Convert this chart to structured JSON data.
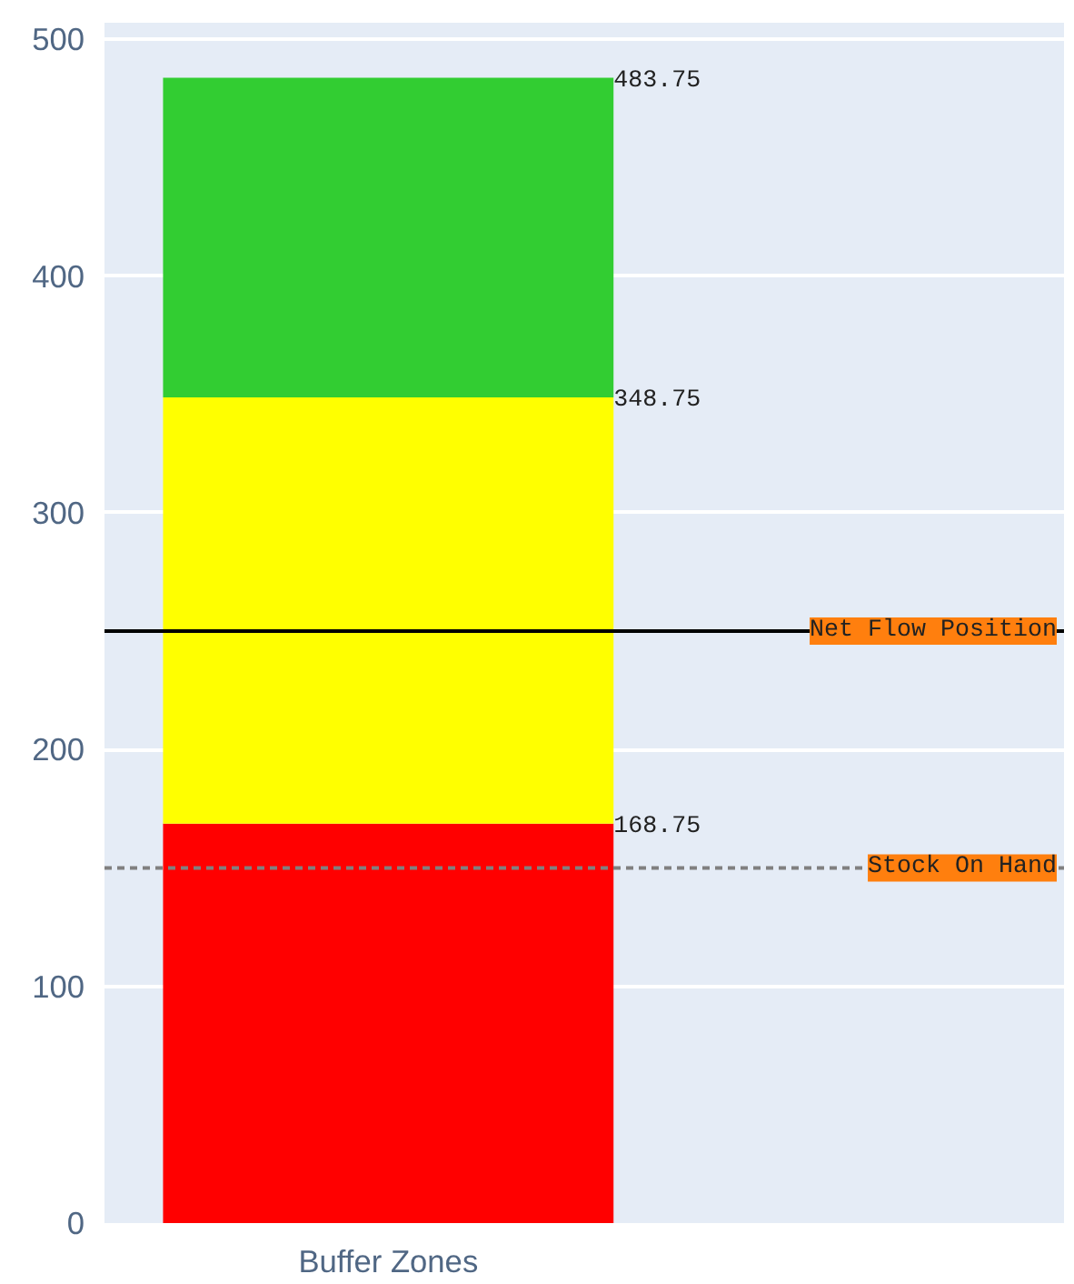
{
  "chart_data": {
    "type": "bar",
    "stacked": true,
    "categories": [
      "Buffer Zones"
    ],
    "series": [
      {
        "color": "#ff0000",
        "values": [
          168.75
        ]
      },
      {
        "color": "#ffff00",
        "values": [
          180
        ]
      },
      {
        "color": "#32cd32",
        "values": [
          135
        ]
      }
    ],
    "annotations": [
      "168.75",
      "348.75",
      "483.75"
    ],
    "ylim": [
      0,
      507
    ],
    "yticks": [
      0,
      100,
      200,
      300,
      400,
      500
    ],
    "grid": "y",
    "ref_lines": [
      {
        "axis": "y",
        "value": 250,
        "label": "Net Flow Position",
        "color": "#000000",
        "line_style": "solid"
      },
      {
        "axis": "y",
        "value": 150,
        "label": "Stock On Hand",
        "color": "#808080",
        "line_style": "dotted"
      }
    ]
  }
}
